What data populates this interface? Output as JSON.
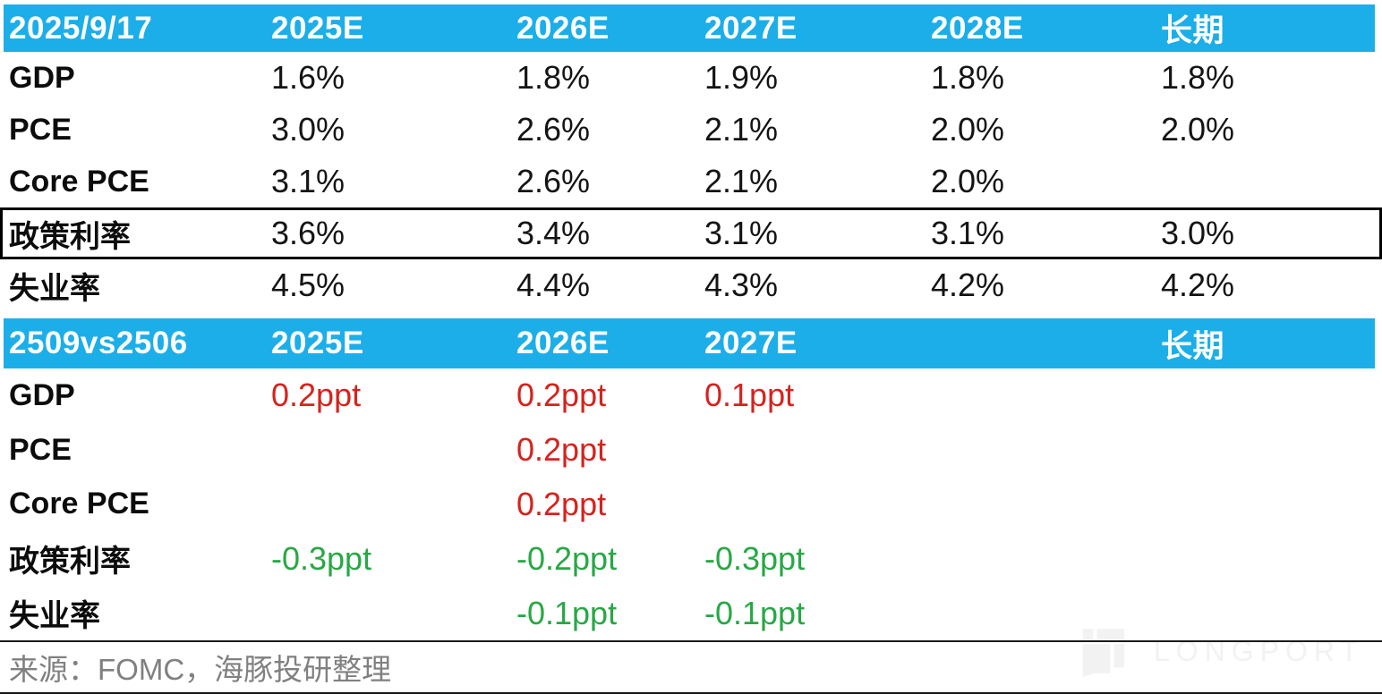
{
  "colors": {
    "header_bg": "#1caee9",
    "red": "#d6231e",
    "green": "#27a845",
    "text": "#111111",
    "source_gray": "#808080",
    "watermark_gray": "#f2f2f2"
  },
  "chart_data": [
    {
      "type": "table",
      "title": "2025/9/17",
      "columns": [
        "2025E",
        "2026E",
        "2027E",
        "2028E",
        "长期"
      ],
      "rows": [
        {
          "label": "GDP",
          "tone": "black",
          "outlined": false,
          "values": [
            "1.6%",
            "1.8%",
            "1.9%",
            "1.8%",
            "1.8%"
          ]
        },
        {
          "label": "PCE",
          "tone": "black",
          "outlined": false,
          "values": [
            "3.0%",
            "2.6%",
            "2.1%",
            "2.0%",
            "2.0%"
          ]
        },
        {
          "label": "Core PCE",
          "tone": "black",
          "outlined": false,
          "values": [
            "3.1%",
            "2.6%",
            "2.1%",
            "2.0%",
            ""
          ]
        },
        {
          "label": "政策利率",
          "tone": "black",
          "outlined": true,
          "values": [
            "3.6%",
            "3.4%",
            "3.1%",
            "3.1%",
            "3.0%"
          ]
        },
        {
          "label": "失业率",
          "tone": "black",
          "outlined": false,
          "values": [
            "4.5%",
            "4.4%",
            "4.3%",
            "4.2%",
            "4.2%"
          ]
        }
      ]
    },
    {
      "type": "table",
      "title": "2509vs2506",
      "columns": [
        "2025E",
        "2026E",
        "2027E",
        "",
        "长期"
      ],
      "rows": [
        {
          "label": "GDP",
          "tone": "red",
          "outlined": false,
          "values": [
            "0.2ppt",
            "0.2ppt",
            "0.1ppt",
            "",
            ""
          ]
        },
        {
          "label": "PCE",
          "tone": "red",
          "outlined": false,
          "values": [
            "",
            "0.2ppt",
            "",
            "",
            ""
          ]
        },
        {
          "label": "Core PCE",
          "tone": "red",
          "outlined": false,
          "values": [
            "",
            "0.2ppt",
            "",
            "",
            ""
          ]
        },
        {
          "label": "政策利率",
          "tone": "green",
          "outlined": false,
          "values": [
            "-0.3ppt",
            "-0.2ppt",
            "-0.3ppt",
            "",
            ""
          ]
        },
        {
          "label": "失业率",
          "tone": "green",
          "outlined": false,
          "values": [
            "",
            "-0.1ppt",
            "-0.1ppt",
            "",
            ""
          ]
        }
      ]
    }
  ],
  "footer": {
    "source": "来源：FOMC，海豚投研整理"
  },
  "watermark": {
    "brand": "LONGPORT"
  }
}
